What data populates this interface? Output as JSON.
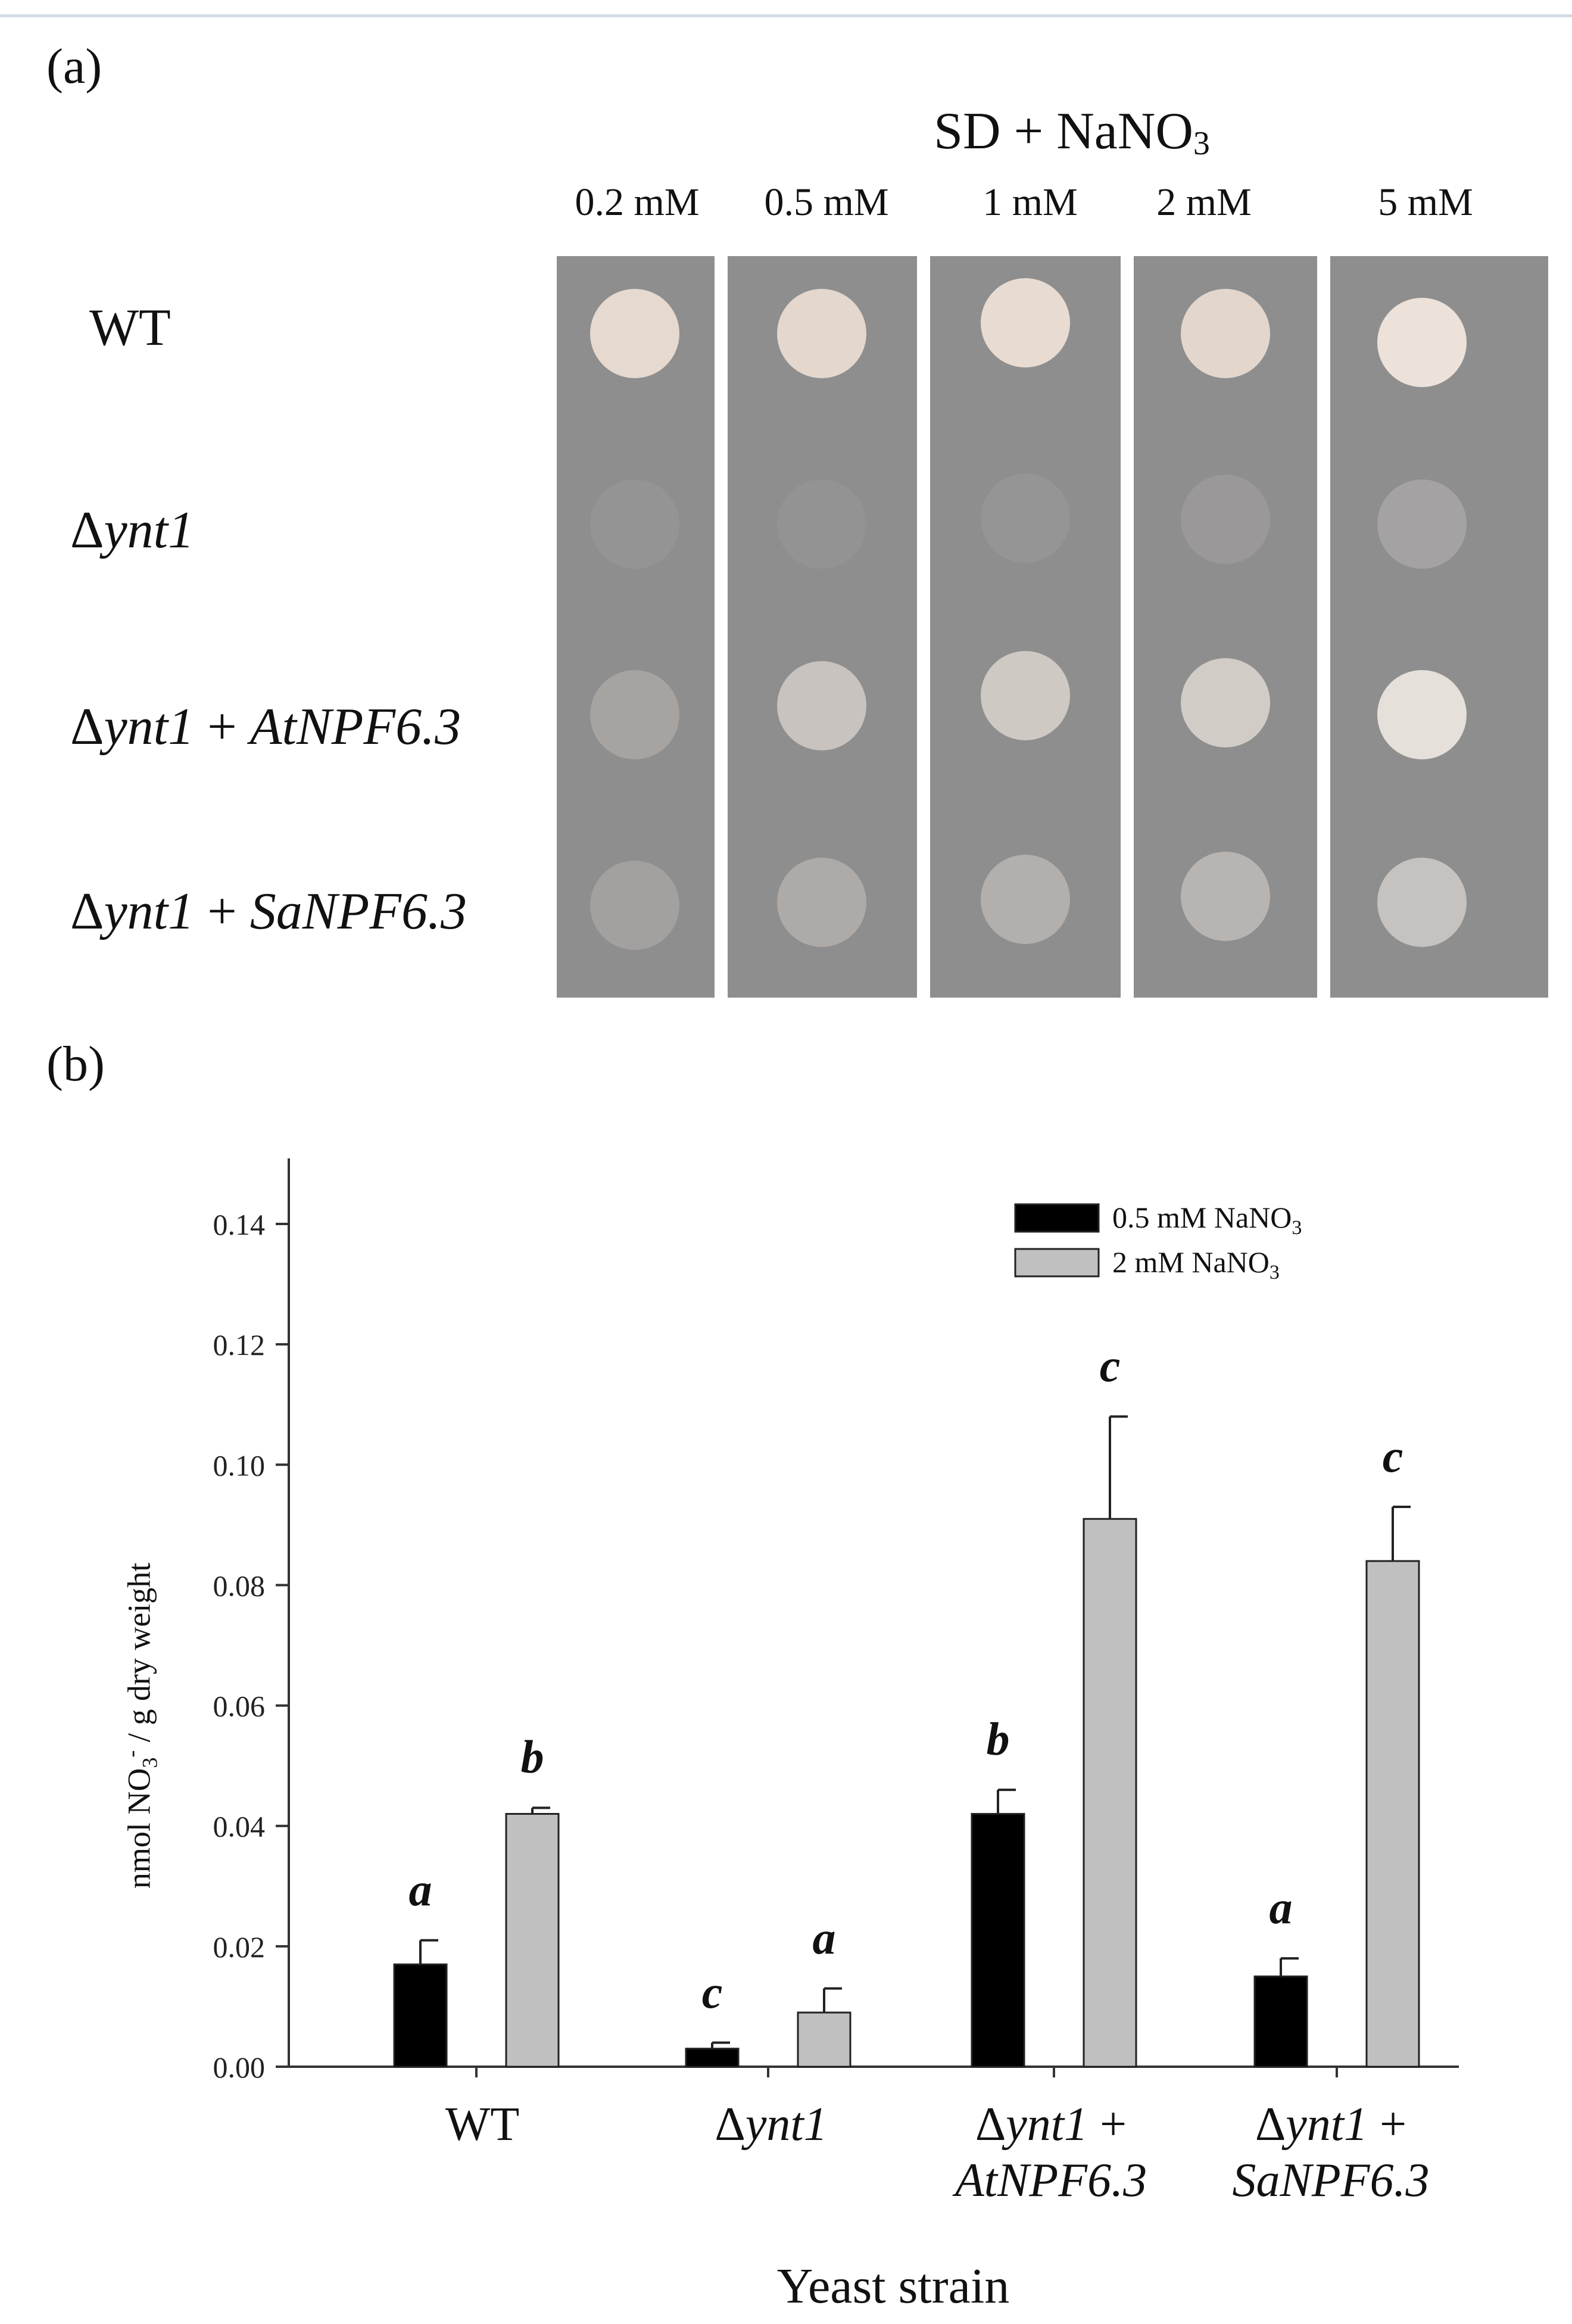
{
  "panel_a": {
    "label": "(a)",
    "condition_title": "SD + NaNO",
    "condition_sub": "3",
    "concentrations": [
      "0.2 mM",
      "0.5 mM",
      "1 mM",
      "2 mM",
      "5 mM"
    ],
    "strains": [
      {
        "prefix": "WT",
        "italic": "",
        "plus": "",
        "gene": ""
      },
      {
        "prefix": "Δ",
        "italic": "ynt1",
        "plus": "",
        "gene": ""
      },
      {
        "prefix": "Δ",
        "italic": "ynt1",
        "plus": " + ",
        "gene": "AtNPF6.3"
      },
      {
        "prefix": "Δ",
        "italic": "ynt1",
        "plus": " + ",
        "gene": "SaNPF6.3"
      }
    ],
    "plate_colors": {
      "plate": "#8e8e8e",
      "divider": "#ffffff"
    }
  },
  "panel_b": {
    "label": "(b)",
    "chart_data": {
      "type": "bar",
      "categories": [
        "WT",
        "Δynt1",
        "Δynt1 + AtNPF6.3",
        "Δynt1 + SaNPF6.3"
      ],
      "category_labels": [
        {
          "line1_prefix": "WT",
          "line1_italic": "",
          "line1_suffix": "",
          "line2": ""
        },
        {
          "line1_prefix": "Δ",
          "line1_italic": "ynt1",
          "line1_suffix": "",
          "line2": ""
        },
        {
          "line1_prefix": "Δ",
          "line1_italic": "ynt1",
          "line1_suffix": " +",
          "line2": "AtNPF6.3"
        },
        {
          "line1_prefix": "Δ",
          "line1_italic": "ynt1",
          "line1_suffix": " +",
          "line2": "SaNPF6.3"
        }
      ],
      "series": [
        {
          "name": "0.5 mM NaNO",
          "name_sub": "3",
          "color": "#000000",
          "values": [
            0.017,
            0.003,
            0.042,
            0.015
          ],
          "errors": [
            0.004,
            0.001,
            0.004,
            0.003
          ],
          "labels": [
            "a",
            "c",
            "b",
            "a"
          ]
        },
        {
          "name": "2 mM NaNO",
          "name_sub": "3",
          "color": "#c0c0c0",
          "values": [
            0.042,
            0.009,
            0.091,
            0.084
          ],
          "errors": [
            0.001,
            0.004,
            0.017,
            0.009
          ],
          "labels": [
            "b",
            "a",
            "c",
            "c"
          ]
        }
      ],
      "ylabel_prefix": "nmol NO",
      "ylabel_sub": "3",
      "ylabel_sup": "-",
      "ylabel_suffix": " / g dry weight",
      "xlabel": "Yeast strain",
      "yticks": [
        "0.00",
        "0.02",
        "0.04",
        "0.06",
        "0.08",
        "0.10",
        "0.12",
        "0.14"
      ],
      "ylim": [
        0,
        0.15
      ],
      "legend_position": "top-right",
      "grid": false
    }
  }
}
